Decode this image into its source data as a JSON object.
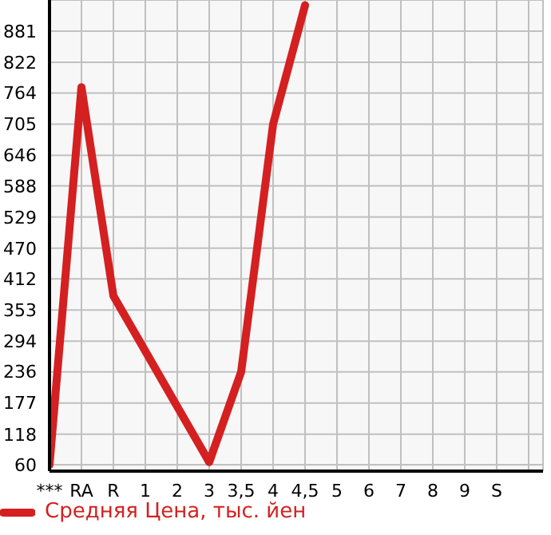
{
  "chart_data": {
    "type": "line",
    "categories": [
      "***",
      "RA",
      "R",
      "1",
      "2",
      "3",
      "3,5",
      "4",
      "4,5",
      "5",
      "6",
      "7",
      "8",
      "9",
      "S",
      null
    ],
    "series": [
      {
        "name": "Средняя Цена, тыс. йен",
        "color": "#d42020",
        "values": [
          60,
          775,
          380,
          275,
          170,
          65,
          236,
          705,
          930,
          null,
          null,
          null,
          null,
          null,
          null,
          null
        ]
      }
    ],
    "ylim": [
      48,
      940
    ],
    "yticks": [
      60,
      118,
      177,
      236,
      294,
      353,
      412,
      470,
      529,
      588,
      646,
      705,
      764,
      822,
      881
    ],
    "grid": true,
    "legend": "bottom",
    "marker": "none",
    "line_style": "solid"
  }
}
